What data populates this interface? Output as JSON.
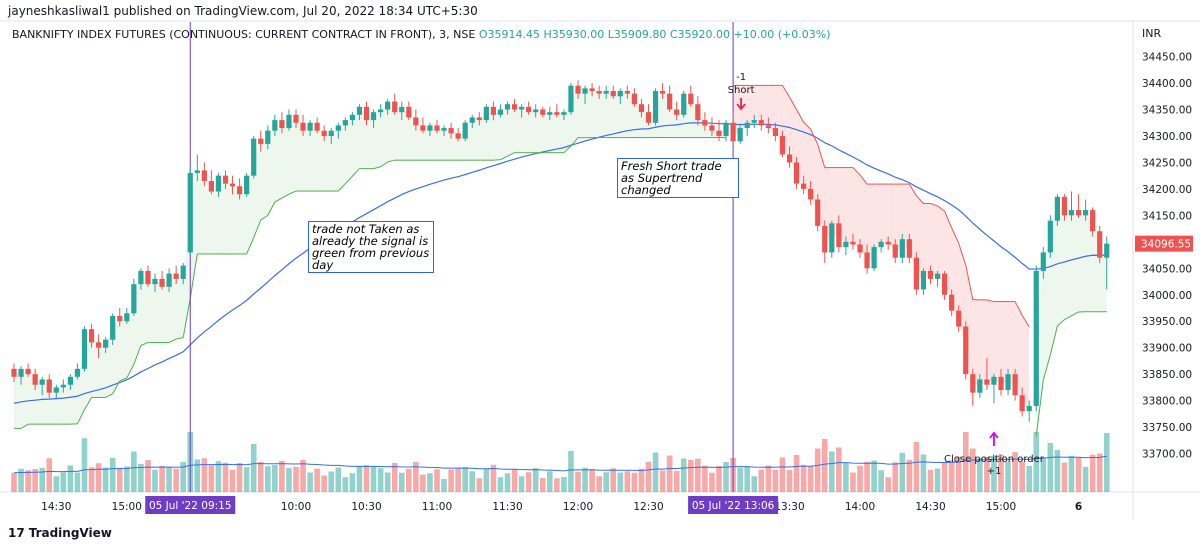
{
  "header": {
    "published": "jayneshkasliwal1 published on TradingView.com, Jul 20, 2022 18:34 UTC+5:30",
    "symbol": "BANKNIFTY INDEX FUTURES (CONTINUOUS: CURRENT CONTRACT IN FRONT), 3, NSE",
    "open": "O35914.45",
    "high": "H35930.00",
    "low": "L35909.80",
    "close": "C35920.00",
    "change": "+10.00 (+0.03%)",
    "currency": "INR"
  },
  "annotations": {
    "note_left": "trade not Taken as already the signal is green from previous day",
    "note_right": "Fresh Short trade as Supertrend changed",
    "short_label": "Short",
    "short_qty": "-1",
    "close_label": "Close position order",
    "close_qty": "+1"
  },
  "footer": {
    "brand": "TradingView",
    "logo": "17"
  },
  "colors": {
    "up": "#26a69a",
    "down": "#ef5350",
    "ma": "#3a6ee8",
    "supertrend_up": "#4caf50",
    "supertrend_down": "#ef5350",
    "marker": "#6f3cc4"
  },
  "chart_data": {
    "type": "candlestick",
    "title": "BANKNIFTY INDEX FUTURES (CONTINUOUS: CURRENT CONTRACT IN FRONT), 3, NSE",
    "ylim": [
      33650,
      34470
    ],
    "y_ticks": [
      "34450.00",
      "34400.00",
      "34350.00",
      "34300.00",
      "34250.00",
      "34200.00",
      "34150.00",
      "34100.00",
      "34050.00",
      "34000.00",
      "33950.00",
      "33900.00",
      "33850.00",
      "33800.00",
      "33750.00",
      "33700.00"
    ],
    "x_ticks": [
      "14:30",
      "15:00",
      "10:00",
      "10:30",
      "11:00",
      "11:30",
      "12:00",
      "12:30",
      "13:30",
      "14:00",
      "14:30",
      "15:00",
      "6"
    ],
    "x_tick_index": [
      6,
      16,
      40,
      50,
      60,
      70,
      80,
      90,
      110,
      120,
      130,
      140,
      151
    ],
    "highlight_ticks": [
      {
        "label": "05 Jul '22  09:15",
        "index": 25
      },
      {
        "label": "05 Jul '22  13:06",
        "index": 102
      }
    ],
    "last_price": "34096.55",
    "candles": [
      {
        "o": 33860,
        "h": 33870,
        "l": 33835,
        "c": 33845
      },
      {
        "o": 33845,
        "h": 33865,
        "l": 33830,
        "c": 33860
      },
      {
        "o": 33860,
        "h": 33870,
        "l": 33845,
        "c": 33850
      },
      {
        "o": 33850,
        "h": 33860,
        "l": 33820,
        "c": 33830
      },
      {
        "o": 33830,
        "h": 33845,
        "l": 33810,
        "c": 33840
      },
      {
        "o": 33840,
        "h": 33850,
        "l": 33805,
        "c": 33815
      },
      {
        "o": 33815,
        "h": 33830,
        "l": 33805,
        "c": 33825
      },
      {
        "o": 33825,
        "h": 33840,
        "l": 33815,
        "c": 33830
      },
      {
        "o": 33830,
        "h": 33850,
        "l": 33820,
        "c": 33845
      },
      {
        "o": 33845,
        "h": 33870,
        "l": 33840,
        "c": 33860
      },
      {
        "o": 33860,
        "h": 33940,
        "l": 33855,
        "c": 33935
      },
      {
        "o": 33935,
        "h": 33945,
        "l": 33900,
        "c": 33910
      },
      {
        "o": 33910,
        "h": 33925,
        "l": 33880,
        "c": 33900
      },
      {
        "o": 33900,
        "h": 33920,
        "l": 33890,
        "c": 33915
      },
      {
        "o": 33915,
        "h": 33965,
        "l": 33905,
        "c": 33960
      },
      {
        "o": 33960,
        "h": 33975,
        "l": 33940,
        "c": 33950
      },
      {
        "o": 33950,
        "h": 33975,
        "l": 33945,
        "c": 33965
      },
      {
        "o": 33965,
        "h": 34030,
        "l": 33960,
        "c": 34020
      },
      {
        "o": 34020,
        "h": 34050,
        "l": 34010,
        "c": 34045
      },
      {
        "o": 34045,
        "h": 34055,
        "l": 34015,
        "c": 34020
      },
      {
        "o": 34020,
        "h": 34040,
        "l": 34005,
        "c": 34030
      },
      {
        "o": 34030,
        "h": 34045,
        "l": 34010,
        "c": 34015
      },
      {
        "o": 34015,
        "h": 34050,
        "l": 34005,
        "c": 34040
      },
      {
        "o": 34040,
        "h": 34055,
        "l": 34020,
        "c": 34030
      },
      {
        "o": 34030,
        "h": 34060,
        "l": 34020,
        "c": 34055
      },
      {
        "o": 34080,
        "h": 34240,
        "l": 34075,
        "c": 34230
      },
      {
        "o": 34230,
        "h": 34265,
        "l": 34215,
        "c": 34235
      },
      {
        "o": 34235,
        "h": 34250,
        "l": 34205,
        "c": 34215
      },
      {
        "o": 34215,
        "h": 34235,
        "l": 34190,
        "c": 34195
      },
      {
        "o": 34195,
        "h": 34230,
        "l": 34185,
        "c": 34225
      },
      {
        "o": 34225,
        "h": 34235,
        "l": 34200,
        "c": 34210
      },
      {
        "o": 34210,
        "h": 34225,
        "l": 34190,
        "c": 34205
      },
      {
        "o": 34205,
        "h": 34220,
        "l": 34180,
        "c": 34190
      },
      {
        "o": 34190,
        "h": 34230,
        "l": 34185,
        "c": 34225
      },
      {
        "o": 34225,
        "h": 34300,
        "l": 34220,
        "c": 34295
      },
      {
        "o": 34295,
        "h": 34310,
        "l": 34270,
        "c": 34285
      },
      {
        "o": 34285,
        "h": 34320,
        "l": 34275,
        "c": 34310
      },
      {
        "o": 34310,
        "h": 34340,
        "l": 34300,
        "c": 34330
      },
      {
        "o": 34330,
        "h": 34345,
        "l": 34305,
        "c": 34315
      },
      {
        "o": 34315,
        "h": 34350,
        "l": 34310,
        "c": 34340
      },
      {
        "o": 34340,
        "h": 34350,
        "l": 34315,
        "c": 34325
      },
      {
        "o": 34325,
        "h": 34340,
        "l": 34300,
        "c": 34310
      },
      {
        "o": 34310,
        "h": 34330,
        "l": 34300,
        "c": 34325
      },
      {
        "o": 34325,
        "h": 34335,
        "l": 34305,
        "c": 34310
      },
      {
        "o": 34310,
        "h": 34320,
        "l": 34290,
        "c": 34300
      },
      {
        "o": 34300,
        "h": 34315,
        "l": 34285,
        "c": 34310
      },
      {
        "o": 34310,
        "h": 34325,
        "l": 34295,
        "c": 34320
      },
      {
        "o": 34320,
        "h": 34335,
        "l": 34310,
        "c": 34330
      },
      {
        "o": 34330,
        "h": 34345,
        "l": 34320,
        "c": 34340
      },
      {
        "o": 34340,
        "h": 34360,
        "l": 34330,
        "c": 34355
      },
      {
        "o": 34355,
        "h": 34365,
        "l": 34320,
        "c": 34330
      },
      {
        "o": 34330,
        "h": 34350,
        "l": 34315,
        "c": 34345
      },
      {
        "o": 34345,
        "h": 34360,
        "l": 34335,
        "c": 34350
      },
      {
        "o": 34350,
        "h": 34370,
        "l": 34340,
        "c": 34365
      },
      {
        "o": 34365,
        "h": 34380,
        "l": 34340,
        "c": 34345
      },
      {
        "o": 34345,
        "h": 34365,
        "l": 34330,
        "c": 34355
      },
      {
        "o": 34355,
        "h": 34365,
        "l": 34330,
        "c": 34335
      },
      {
        "o": 34335,
        "h": 34350,
        "l": 34310,
        "c": 34320
      },
      {
        "o": 34320,
        "h": 34335,
        "l": 34305,
        "c": 34310
      },
      {
        "o": 34310,
        "h": 34325,
        "l": 34300,
        "c": 34320
      },
      {
        "o": 34320,
        "h": 34330,
        "l": 34305,
        "c": 34310
      },
      {
        "o": 34310,
        "h": 34320,
        "l": 34300,
        "c": 34315
      },
      {
        "o": 34315,
        "h": 34325,
        "l": 34295,
        "c": 34305
      },
      {
        "o": 34305,
        "h": 34315,
        "l": 34290,
        "c": 34295
      },
      {
        "o": 34295,
        "h": 34330,
        "l": 34290,
        "c": 34325
      },
      {
        "o": 34325,
        "h": 34340,
        "l": 34315,
        "c": 34335
      },
      {
        "o": 34335,
        "h": 34345,
        "l": 34320,
        "c": 34330
      },
      {
        "o": 34330,
        "h": 34360,
        "l": 34325,
        "c": 34355
      },
      {
        "o": 34355,
        "h": 34365,
        "l": 34330,
        "c": 34340
      },
      {
        "o": 34340,
        "h": 34360,
        "l": 34335,
        "c": 34350
      },
      {
        "o": 34350,
        "h": 34365,
        "l": 34340,
        "c": 34360
      },
      {
        "o": 34360,
        "h": 34370,
        "l": 34345,
        "c": 34350
      },
      {
        "o": 34350,
        "h": 34360,
        "l": 34335,
        "c": 34355
      },
      {
        "o": 34355,
        "h": 34365,
        "l": 34340,
        "c": 34345
      },
      {
        "o": 34345,
        "h": 34360,
        "l": 34335,
        "c": 34350
      },
      {
        "o": 34350,
        "h": 34355,
        "l": 34335,
        "c": 34340
      },
      {
        "o": 34340,
        "h": 34355,
        "l": 34330,
        "c": 34345
      },
      {
        "o": 34345,
        "h": 34360,
        "l": 34335,
        "c": 34340
      },
      {
        "o": 34340,
        "h": 34350,
        "l": 34330,
        "c": 34345
      },
      {
        "o": 34345,
        "h": 34400,
        "l": 34340,
        "c": 34395
      },
      {
        "o": 34395,
        "h": 34405,
        "l": 34370,
        "c": 34380
      },
      {
        "o": 34380,
        "h": 34395,
        "l": 34360,
        "c": 34390
      },
      {
        "o": 34390,
        "h": 34400,
        "l": 34375,
        "c": 34385
      },
      {
        "o": 34385,
        "h": 34395,
        "l": 34370,
        "c": 34380
      },
      {
        "o": 34380,
        "h": 34395,
        "l": 34370,
        "c": 34385
      },
      {
        "o": 34385,
        "h": 34395,
        "l": 34370,
        "c": 34375
      },
      {
        "o": 34375,
        "h": 34390,
        "l": 34360,
        "c": 34385
      },
      {
        "o": 34385,
        "h": 34395,
        "l": 34370,
        "c": 34380
      },
      {
        "o": 34380,
        "h": 34390,
        "l": 34355,
        "c": 34360
      },
      {
        "o": 34360,
        "h": 34370,
        "l": 34335,
        "c": 34345
      },
      {
        "o": 34345,
        "h": 34360,
        "l": 34320,
        "c": 34325
      },
      {
        "o": 34325,
        "h": 34390,
        "l": 34320,
        "c": 34385
      },
      {
        "o": 34385,
        "h": 34400,
        "l": 34370,
        "c": 34380
      },
      {
        "o": 34380,
        "h": 34395,
        "l": 34345,
        "c": 34350
      },
      {
        "o": 34350,
        "h": 34365,
        "l": 34330,
        "c": 34340
      },
      {
        "o": 34340,
        "h": 34385,
        "l": 34335,
        "c": 34380
      },
      {
        "o": 34380,
        "h": 34395,
        "l": 34355,
        "c": 34360
      },
      {
        "o": 34360,
        "h": 34375,
        "l": 34320,
        "c": 34330
      },
      {
        "o": 34330,
        "h": 34345,
        "l": 34310,
        "c": 34320
      },
      {
        "o": 34320,
        "h": 34335,
        "l": 34300,
        "c": 34310
      },
      {
        "o": 34310,
        "h": 34330,
        "l": 34290,
        "c": 34300
      },
      {
        "o": 34300,
        "h": 34330,
        "l": 34290,
        "c": 34325
      },
      {
        "o": 34325,
        "h": 34340,
        "l": 34280,
        "c": 34290
      },
      {
        "o": 34290,
        "h": 34320,
        "l": 34285,
        "c": 34315
      },
      {
        "o": 34315,
        "h": 34330,
        "l": 34300,
        "c": 34325
      },
      {
        "o": 34325,
        "h": 34340,
        "l": 34315,
        "c": 34330
      },
      {
        "o": 34330,
        "h": 34340,
        "l": 34310,
        "c": 34320
      },
      {
        "o": 34320,
        "h": 34335,
        "l": 34305,
        "c": 34315
      },
      {
        "o": 34315,
        "h": 34325,
        "l": 34290,
        "c": 34300
      },
      {
        "o": 34300,
        "h": 34310,
        "l": 34260,
        "c": 34265
      },
      {
        "o": 34265,
        "h": 34280,
        "l": 34240,
        "c": 34250
      },
      {
        "o": 34250,
        "h": 34260,
        "l": 34200,
        "c": 34210
      },
      {
        "o": 34210,
        "h": 34225,
        "l": 34190,
        "c": 34200
      },
      {
        "o": 34200,
        "h": 34215,
        "l": 34170,
        "c": 34180
      },
      {
        "o": 34180,
        "h": 34190,
        "l": 34120,
        "c": 34130
      },
      {
        "o": 34130,
        "h": 34140,
        "l": 34060,
        "c": 34080
      },
      {
        "o": 34080,
        "h": 34140,
        "l": 34070,
        "c": 34135
      },
      {
        "o": 34135,
        "h": 34150,
        "l": 34080,
        "c": 34090
      },
      {
        "o": 34090,
        "h": 34110,
        "l": 34075,
        "c": 34100
      },
      {
        "o": 34100,
        "h": 34115,
        "l": 34085,
        "c": 34095
      },
      {
        "o": 34095,
        "h": 34105,
        "l": 34070,
        "c": 34080
      },
      {
        "o": 34080,
        "h": 34095,
        "l": 34040,
        "c": 34050
      },
      {
        "o": 34050,
        "h": 34095,
        "l": 34045,
        "c": 34090
      },
      {
        "o": 34090,
        "h": 34105,
        "l": 34080,
        "c": 34100
      },
      {
        "o": 34100,
        "h": 34110,
        "l": 34085,
        "c": 34095
      },
      {
        "o": 34095,
        "h": 34105,
        "l": 34060,
        "c": 34070
      },
      {
        "o": 34070,
        "h": 34115,
        "l": 34060,
        "c": 34105
      },
      {
        "o": 34105,
        "h": 34115,
        "l": 34060,
        "c": 34070
      },
      {
        "o": 34070,
        "h": 34080,
        "l": 34000,
        "c": 34010
      },
      {
        "o": 34010,
        "h": 34050,
        "l": 34000,
        "c": 34045
      },
      {
        "o": 34045,
        "h": 34055,
        "l": 34020,
        "c": 34030
      },
      {
        "o": 34030,
        "h": 34045,
        "l": 34015,
        "c": 34040
      },
      {
        "o": 34040,
        "h": 34045,
        "l": 33990,
        "c": 34000
      },
      {
        "o": 34000,
        "h": 34010,
        "l": 33960,
        "c": 33970
      },
      {
        "o": 33970,
        "h": 33980,
        "l": 33930,
        "c": 33940
      },
      {
        "o": 33940,
        "h": 33950,
        "l": 33840,
        "c": 33850
      },
      {
        "o": 33850,
        "h": 33860,
        "l": 33790,
        "c": 33815
      },
      {
        "o": 33815,
        "h": 33850,
        "l": 33805,
        "c": 33840
      },
      {
        "o": 33840,
        "h": 33880,
        "l": 33820,
        "c": 33830
      },
      {
        "o": 33830,
        "h": 33850,
        "l": 33795,
        "c": 33845
      },
      {
        "o": 33845,
        "h": 33860,
        "l": 33810,
        "c": 33820
      },
      {
        "o": 33820,
        "h": 33860,
        "l": 33810,
        "c": 33850
      },
      {
        "o": 33850,
        "h": 33860,
        "l": 33800,
        "c": 33810
      },
      {
        "o": 33810,
        "h": 33825,
        "l": 33770,
        "c": 33780
      },
      {
        "o": 33780,
        "h": 33800,
        "l": 33760,
        "c": 33790
      },
      {
        "o": 33790,
        "h": 34055,
        "l": 33780,
        "c": 34045
      },
      {
        "o": 34045,
        "h": 34090,
        "l": 34030,
        "c": 34080
      },
      {
        "o": 34080,
        "h": 34150,
        "l": 34070,
        "c": 34140
      },
      {
        "o": 34140,
        "h": 34190,
        "l": 34130,
        "c": 34185
      },
      {
        "o": 34185,
        "h": 34190,
        "l": 34140,
        "c": 34150
      },
      {
        "o": 34150,
        "h": 34195,
        "l": 34140,
        "c": 34160
      },
      {
        "o": 34160,
        "h": 34190,
        "l": 34145,
        "c": 34150
      },
      {
        "o": 34150,
        "h": 34180,
        "l": 34140,
        "c": 34160
      },
      {
        "o": 34160,
        "h": 34165,
        "l": 34110,
        "c": 34120
      },
      {
        "o": 34120,
        "h": 34130,
        "l": 34060,
        "c": 34070
      },
      {
        "o": 34070,
        "h": 34110,
        "l": 34010,
        "c": 34096.55
      }
    ]
  }
}
